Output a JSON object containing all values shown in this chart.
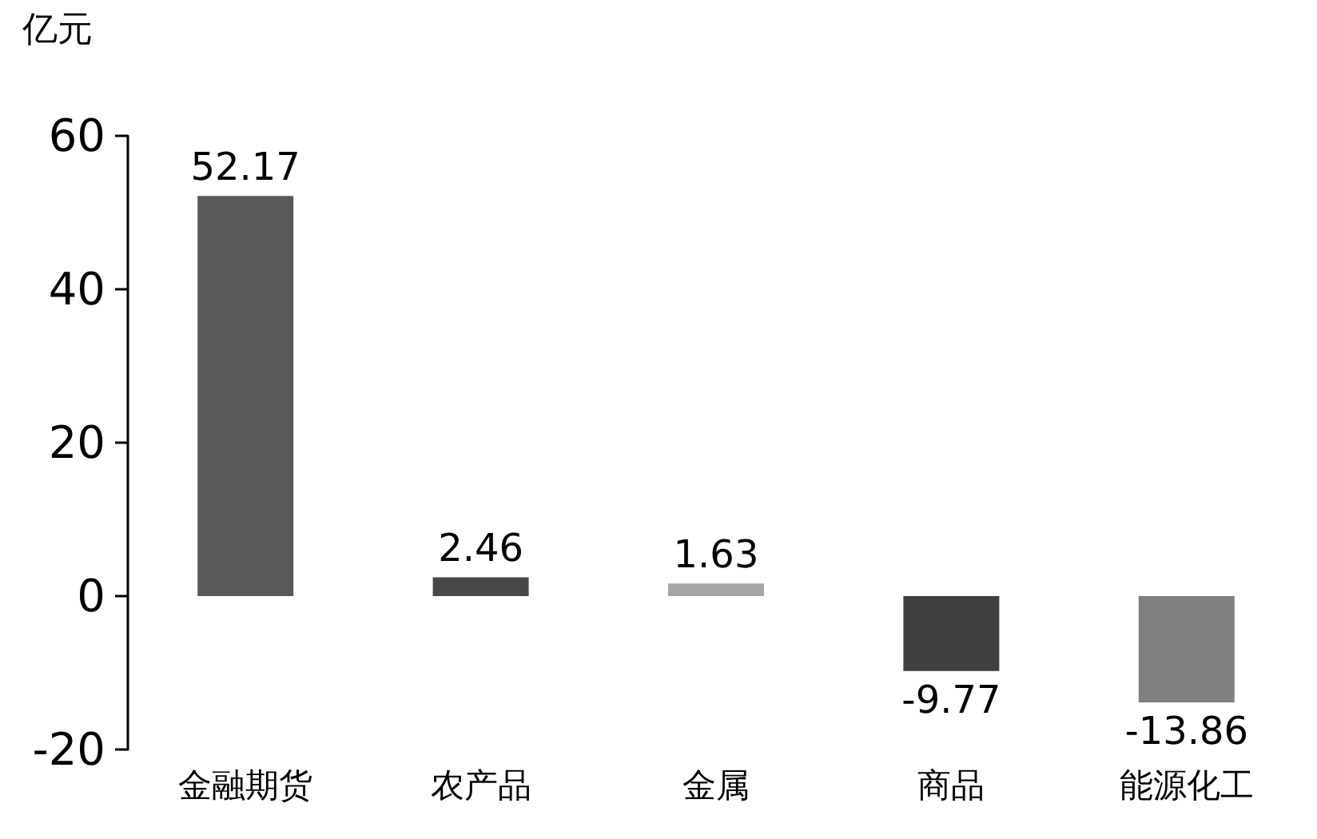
{
  "chart_data": {
    "type": "bar",
    "ylabel": "亿元",
    "categories": [
      "金融期货",
      "农产品",
      "金属",
      "商品",
      "能源化工"
    ],
    "values": [
      52.17,
      2.46,
      1.63,
      -9.77,
      -13.86
    ],
    "colors": [
      "#595959",
      "#474747",
      "#a6a6a6",
      "#3f3f3f",
      "#7f7f7f"
    ],
    "ylim": [
      -20,
      60
    ],
    "yticks": [
      -20,
      0,
      20,
      40,
      60
    ],
    "grid": false,
    "data_labels": true
  }
}
